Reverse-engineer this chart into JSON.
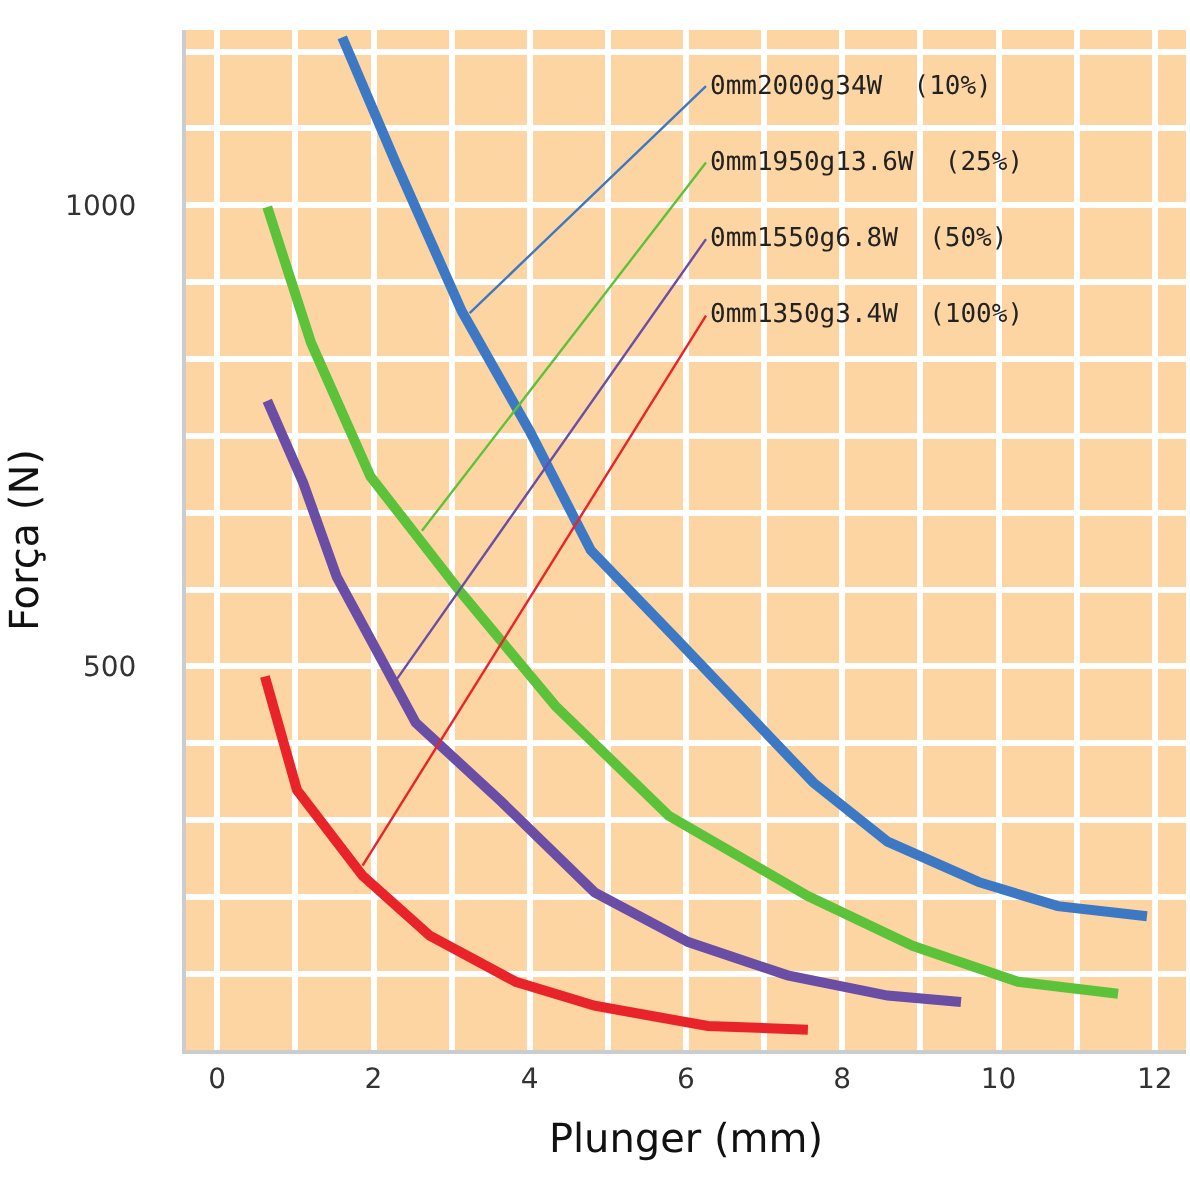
{
  "chart_data": {
    "type": "line",
    "xlabel": "Plunger (mm)",
    "ylabel": "Força (N)",
    "xlim": [
      -0.4,
      12.4
    ],
    "ylim": [
      84,
      1190
    ],
    "xticks": [
      0,
      2,
      4,
      6,
      8,
      10,
      12
    ],
    "yticks": [
      500,
      1000
    ],
    "grid": true,
    "marker": "none",
    "line_style": "solid",
    "series": [
      {
        "color": "#3d78c4",
        "x": [
          1.6,
          2.29,
          3.13,
          4.0,
          4.78,
          5.85,
          7.63,
          8.58,
          9.75,
          10.76,
          11.9
        ],
        "values": [
          1182,
          1045,
          885,
          755,
          626,
          532,
          374,
          310,
          266,
          240,
          229
        ]
      },
      {
        "color": "#5cc23a",
        "x": [
          0.64,
          1.2,
          1.96,
          3.1,
          4.33,
          5.78,
          7.56,
          8.9,
          10.25,
          11.53
        ],
        "values": [
          998,
          851,
          706,
          582,
          457,
          338,
          251,
          197,
          158,
          145
        ]
      },
      {
        "color": "#6a4ea6",
        "x": [
          0.64,
          1.1,
          1.53,
          2.54,
          3.64,
          4.83,
          6.03,
          7.3,
          8.58,
          9.52
        ],
        "values": [
          788,
          699,
          597,
          439,
          353,
          255,
          201,
          165,
          143,
          136
        ]
      },
      {
        "color": "#e8232a",
        "x": [
          0.61,
          1.02,
          1.86,
          2.72,
          3.82,
          4.83,
          6.28,
          7.56
        ],
        "values": [
          489,
          366,
          273,
          208,
          158,
          132,
          110,
          106
        ]
      }
    ],
    "annotations": [
      {
        "text": "0mm2000g34W  (10%)",
        "x": 3.23,
        "y": 883
      },
      {
        "text": "0mm1950g13.6W  (25%)",
        "x": 2.62,
        "y": 647
      },
      {
        "text": "0mm1550g6.8W  (50%)",
        "x": 2.29,
        "y": 485
      },
      {
        "text": "0mm1350g3.4W  (100%)",
        "x": 1.86,
        "y": 284
      }
    ]
  }
}
